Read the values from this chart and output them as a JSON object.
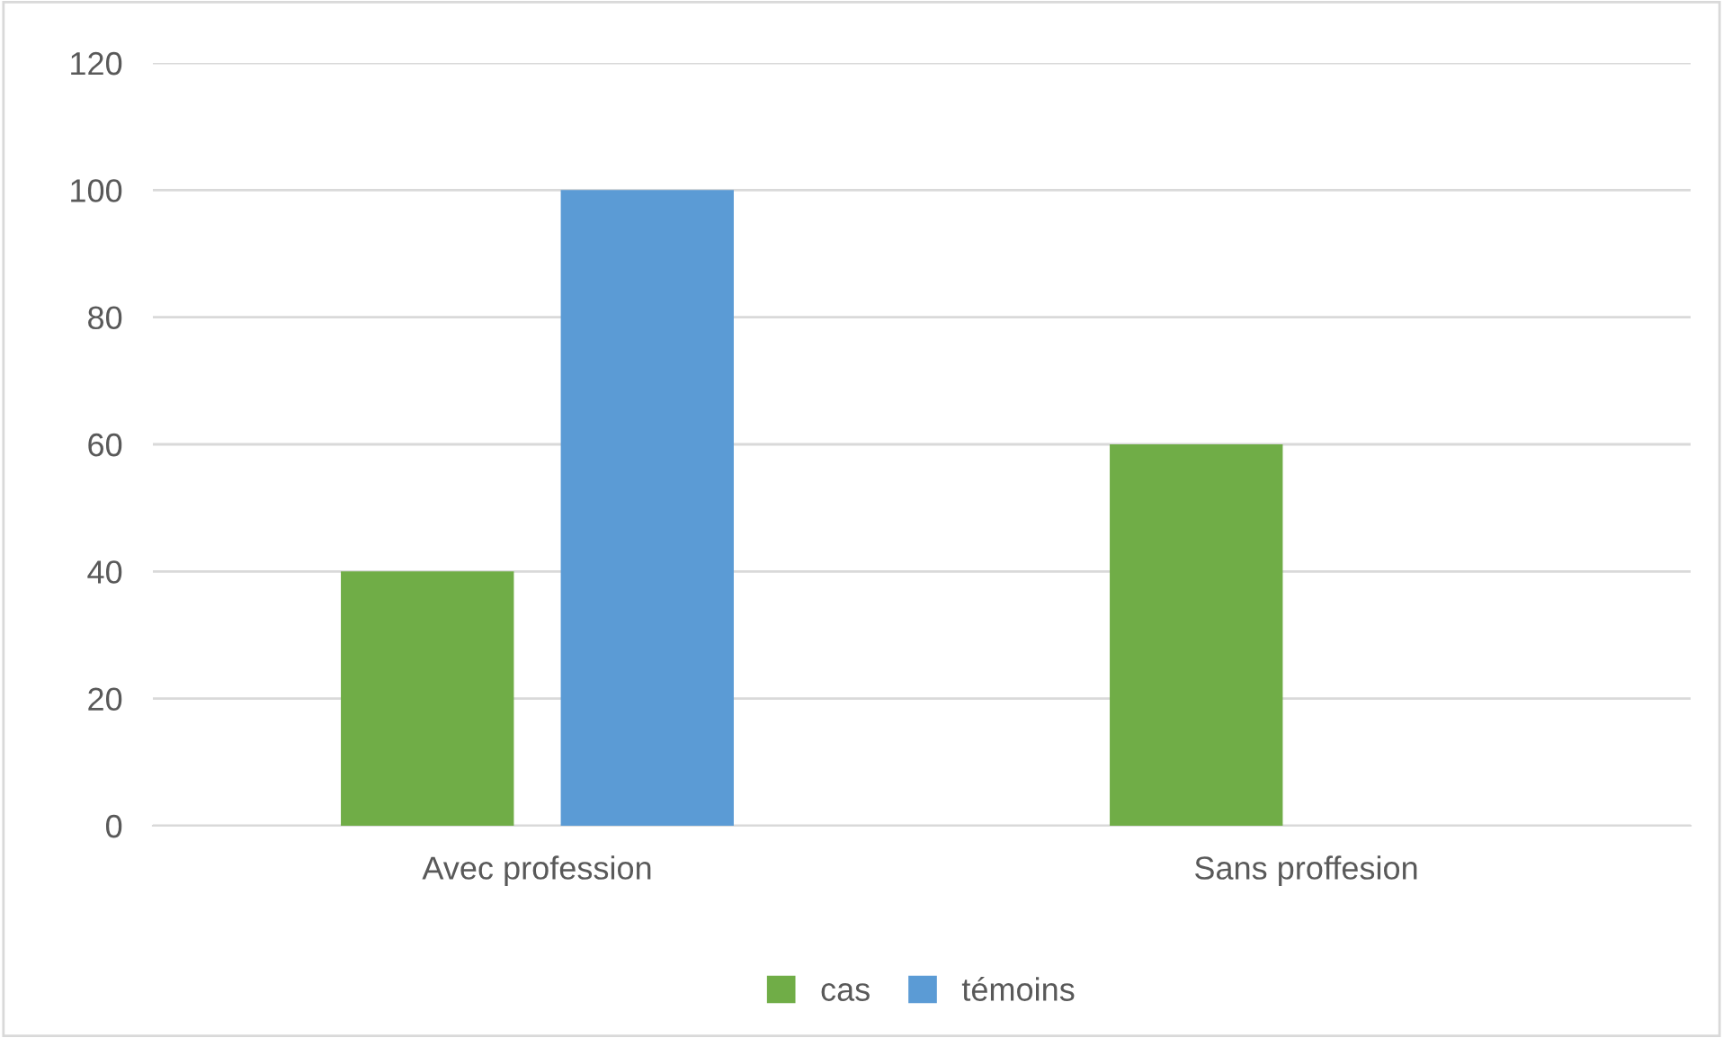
{
  "chart_data": {
    "type": "bar",
    "categories": [
      "Avec profession",
      "Sans proffesion"
    ],
    "series": [
      {
        "name": "cas",
        "color": "#70ad47",
        "values": [
          40,
          60
        ]
      },
      {
        "name": "témoins",
        "color": "#5b9bd5",
        "values": [
          100,
          0
        ]
      }
    ],
    "ylim": [
      0,
      120
    ],
    "yticks": [
      0,
      20,
      40,
      60,
      80,
      100,
      120
    ],
    "grid": "y",
    "legend": "bottom"
  }
}
